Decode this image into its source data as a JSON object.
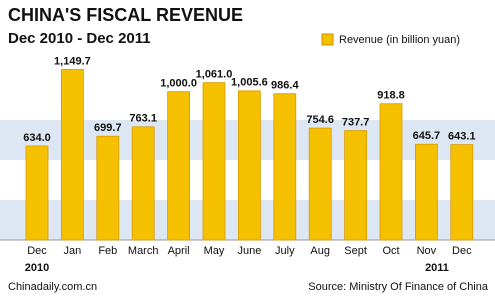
{
  "chart_data": {
    "type": "bar",
    "title": "CHINA'S FISCAL REVENUE",
    "subtitle": "Dec 2010 - Dec 2011",
    "categories": [
      "Dec",
      "Jan",
      "Feb",
      "March",
      "April",
      "May",
      "June",
      "July",
      "Aug",
      "Sept",
      "Oct",
      "Nov",
      "Dec"
    ],
    "year_labels": [
      "2010",
      "2011"
    ],
    "series": [
      {
        "name": "Revenue (in billion yuan)",
        "color": "#f5c000",
        "values": [
          634.0,
          1149.7,
          699.7,
          763.1,
          1000.0,
          1061.0,
          1005.6,
          986.4,
          754.6,
          737.7,
          918.8,
          645.7,
          643.1
        ],
        "value_labels": [
          "634.0",
          "1,149.7",
          "699.7",
          "763.1",
          "1,000.0",
          "1,061.0",
          "1,005.6",
          "986.4",
          "754.6",
          "737.7",
          "918.8",
          "645.7",
          "643.1"
        ]
      }
    ],
    "ylim": [
      0,
      1200
    ],
    "credit": "Chinadaily.com.cn",
    "source": "Source: Ministry Of Finance of China"
  }
}
